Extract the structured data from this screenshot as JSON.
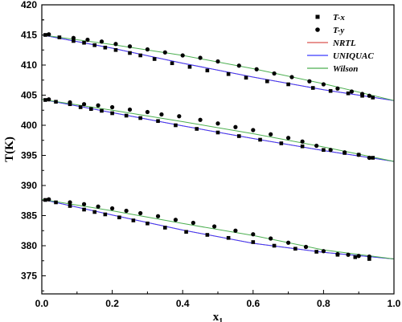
{
  "chart_data": {
    "type": "scatter",
    "xlabel": "x",
    "xlabel_subscript": "1",
    "ylabel": "T(K)",
    "xlim": [
      0.0,
      1.0
    ],
    "ylim": [
      372,
      420
    ],
    "x_ticks": [
      "0.0",
      "0.2",
      "0.4",
      "0.6",
      "0.8",
      "1.0"
    ],
    "y_ticks": [
      "375",
      "380",
      "385",
      "390",
      "395",
      "400",
      "405",
      "410",
      "415",
      "420"
    ],
    "legend_position": "top-right",
    "grid": false,
    "legend": [
      {
        "label": "T-x",
        "kind": "square-marker",
        "color": "#000000"
      },
      {
        "label": "T-y",
        "kind": "circle-marker",
        "color": "#000000"
      },
      {
        "label": "NRTL",
        "kind": "line",
        "color": "#d9534f"
      },
      {
        "label": "UNIQUAC",
        "kind": "line",
        "color": "#3a3aff"
      },
      {
        "label": "Wilson",
        "kind": "line",
        "color": "#4caf50"
      }
    ],
    "systems": [
      {
        "tx": [
          [
            0.01,
            415.0
          ],
          [
            0.05,
            414.6
          ],
          [
            0.09,
            414.0
          ],
          [
            0.12,
            413.7
          ],
          [
            0.15,
            413.3
          ],
          [
            0.18,
            412.9
          ],
          [
            0.21,
            412.5
          ],
          [
            0.25,
            412.0
          ],
          [
            0.28,
            411.6
          ],
          [
            0.32,
            411.0
          ],
          [
            0.37,
            410.3
          ],
          [
            0.42,
            409.7
          ],
          [
            0.47,
            409.1
          ],
          [
            0.53,
            408.5
          ],
          [
            0.58,
            407.9
          ],
          [
            0.64,
            407.3
          ],
          [
            0.7,
            406.8
          ],
          [
            0.77,
            406.2
          ],
          [
            0.82,
            405.7
          ],
          [
            0.87,
            405.3
          ],
          [
            0.91,
            404.9
          ],
          [
            0.94,
            404.6
          ]
        ],
        "ty": [
          [
            0.02,
            415.1
          ],
          [
            0.09,
            414.5
          ],
          [
            0.13,
            414.2
          ],
          [
            0.17,
            413.9
          ],
          [
            0.21,
            413.5
          ],
          [
            0.25,
            413.1
          ],
          [
            0.3,
            412.6
          ],
          [
            0.35,
            412.1
          ],
          [
            0.4,
            411.6
          ],
          [
            0.45,
            411.2
          ],
          [
            0.5,
            410.6
          ],
          [
            0.56,
            409.9
          ],
          [
            0.61,
            409.3
          ],
          [
            0.66,
            408.6
          ],
          [
            0.71,
            408.0
          ],
          [
            0.76,
            407.3
          ],
          [
            0.8,
            406.8
          ],
          [
            0.84,
            406.1
          ],
          [
            0.88,
            405.6
          ],
          [
            0.91,
            405.2
          ],
          [
            0.93,
            404.9
          ]
        ],
        "nrtl": [
          [
            0.0,
            415.0
          ],
          [
            0.2,
            412.8
          ],
          [
            0.4,
            410.3
          ],
          [
            0.6,
            408.0
          ],
          [
            0.8,
            405.9
          ],
          [
            1.0,
            404.1
          ]
        ],
        "uniquac": [
          [
            0.0,
            415.0
          ],
          [
            0.2,
            412.8
          ],
          [
            0.4,
            410.3
          ],
          [
            0.6,
            408.0
          ],
          [
            0.8,
            405.9
          ],
          [
            1.0,
            404.1
          ]
        ],
        "wilson": [
          [
            0.0,
            415.0
          ],
          [
            0.2,
            413.4
          ],
          [
            0.4,
            411.6
          ],
          [
            0.6,
            409.4
          ],
          [
            0.8,
            406.9
          ],
          [
            1.0,
            404.1
          ]
        ]
      },
      {
        "tx": [
          [
            0.01,
            404.2
          ],
          [
            0.04,
            403.9
          ],
          [
            0.08,
            403.5
          ],
          [
            0.11,
            403.0
          ],
          [
            0.14,
            402.7
          ],
          [
            0.17,
            402.4
          ],
          [
            0.2,
            402.0
          ],
          [
            0.24,
            401.6
          ],
          [
            0.28,
            401.2
          ],
          [
            0.33,
            400.7
          ],
          [
            0.38,
            400.0
          ],
          [
            0.44,
            399.4
          ],
          [
            0.5,
            398.8
          ],
          [
            0.56,
            398.2
          ],
          [
            0.62,
            397.6
          ],
          [
            0.68,
            397.0
          ],
          [
            0.74,
            396.5
          ],
          [
            0.8,
            395.9
          ],
          [
            0.86,
            395.4
          ],
          [
            0.9,
            395.1
          ],
          [
            0.94,
            394.6
          ]
        ],
        "ty": [
          [
            0.02,
            404.3
          ],
          [
            0.08,
            403.8
          ],
          [
            0.12,
            403.5
          ],
          [
            0.16,
            403.3
          ],
          [
            0.2,
            403.0
          ],
          [
            0.25,
            402.6
          ],
          [
            0.3,
            402.2
          ],
          [
            0.34,
            401.8
          ],
          [
            0.39,
            401.5
          ],
          [
            0.45,
            400.9
          ],
          [
            0.5,
            400.3
          ],
          [
            0.55,
            399.7
          ],
          [
            0.6,
            399.2
          ],
          [
            0.65,
            398.5
          ],
          [
            0.7,
            397.9
          ],
          [
            0.74,
            397.3
          ],
          [
            0.78,
            396.6
          ],
          [
            0.82,
            395.9
          ],
          [
            0.86,
            395.5
          ],
          [
            0.9,
            395.1
          ],
          [
            0.93,
            394.6
          ]
        ],
        "nrtl": [
          [
            0.0,
            404.3
          ],
          [
            0.2,
            402.1
          ],
          [
            0.4,
            399.9
          ],
          [
            0.6,
            397.8
          ],
          [
            0.8,
            395.8
          ],
          [
            1.0,
            394.0
          ]
        ],
        "uniquac": [
          [
            0.0,
            404.3
          ],
          [
            0.2,
            402.1
          ],
          [
            0.4,
            399.9
          ],
          [
            0.6,
            397.8
          ],
          [
            0.8,
            395.8
          ],
          [
            1.0,
            394.0
          ]
        ],
        "wilson": [
          [
            0.0,
            404.3
          ],
          [
            0.2,
            402.5
          ],
          [
            0.4,
            400.6
          ],
          [
            0.6,
            398.6
          ],
          [
            0.8,
            396.4
          ],
          [
            1.0,
            394.0
          ]
        ]
      },
      {
        "tx": [
          [
            0.01,
            387.6
          ],
          [
            0.04,
            387.2
          ],
          [
            0.08,
            386.6
          ],
          [
            0.12,
            386.0
          ],
          [
            0.15,
            385.6
          ],
          [
            0.18,
            385.2
          ],
          [
            0.22,
            384.7
          ],
          [
            0.26,
            384.2
          ],
          [
            0.3,
            383.7
          ],
          [
            0.35,
            383.0
          ],
          [
            0.41,
            382.3
          ],
          [
            0.47,
            381.8
          ],
          [
            0.53,
            381.3
          ],
          [
            0.6,
            380.6
          ],
          [
            0.66,
            380.0
          ],
          [
            0.72,
            379.5
          ],
          [
            0.78,
            379.0
          ],
          [
            0.84,
            378.5
          ],
          [
            0.89,
            378.1
          ],
          [
            0.93,
            377.8
          ]
        ],
        "ty": [
          [
            0.02,
            387.7
          ],
          [
            0.08,
            387.2
          ],
          [
            0.12,
            386.9
          ],
          [
            0.16,
            386.5
          ],
          [
            0.2,
            386.2
          ],
          [
            0.24,
            385.8
          ],
          [
            0.28,
            385.4
          ],
          [
            0.33,
            384.9
          ],
          [
            0.38,
            384.3
          ],
          [
            0.43,
            383.8
          ],
          [
            0.49,
            383.2
          ],
          [
            0.55,
            382.5
          ],
          [
            0.6,
            381.9
          ],
          [
            0.65,
            381.2
          ],
          [
            0.7,
            380.5
          ],
          [
            0.75,
            379.8
          ],
          [
            0.8,
            379.1
          ],
          [
            0.84,
            378.6
          ],
          [
            0.87,
            378.5
          ],
          [
            0.9,
            378.3
          ],
          [
            0.93,
            378.2
          ]
        ],
        "nrtl": [
          [
            0.0,
            387.7
          ],
          [
            0.2,
            385.1
          ],
          [
            0.4,
            382.6
          ],
          [
            0.6,
            380.4
          ],
          [
            0.8,
            378.9
          ],
          [
            1.0,
            377.8
          ]
        ],
        "uniquac": [
          [
            0.0,
            387.7
          ],
          [
            0.2,
            385.1
          ],
          [
            0.4,
            382.6
          ],
          [
            0.6,
            380.4
          ],
          [
            0.8,
            378.9
          ],
          [
            1.0,
            377.8
          ]
        ],
        "wilson": [
          [
            0.0,
            387.7
          ],
          [
            0.2,
            385.8
          ],
          [
            0.4,
            383.7
          ],
          [
            0.6,
            381.7
          ],
          [
            0.8,
            379.3
          ],
          [
            1.0,
            377.8
          ]
        ]
      }
    ]
  }
}
